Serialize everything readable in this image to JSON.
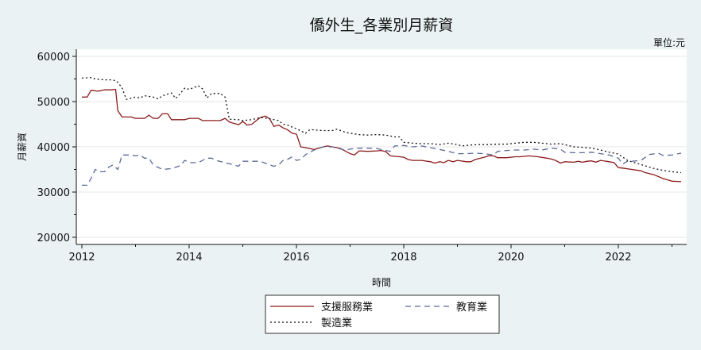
{
  "chart_data": {
    "type": "line",
    "title": "僑外生_各業別月薪資",
    "unit_note": "單位:元",
    "xlabel": "時間",
    "ylabel": "月薪資",
    "xlim": [
      2012,
      2023.25
    ],
    "ylim": [
      20000,
      61000
    ],
    "x_ticks": [
      2012,
      2014,
      2016,
      2018,
      2020,
      2022
    ],
    "y_ticks": [
      20000,
      30000,
      40000,
      50000,
      60000
    ],
    "grid": true,
    "legend_position": "bottom",
    "series": [
      {
        "name": "支援服務業",
        "color": "#8b1a1a",
        "dash": "solid",
        "points": [
          [
            2012.0,
            51000
          ],
          [
            2012.1,
            51000
          ],
          [
            2012.17,
            52500
          ],
          [
            2012.3,
            52300
          ],
          [
            2012.42,
            52600
          ],
          [
            2012.55,
            52600
          ],
          [
            2012.63,
            52700
          ],
          [
            2012.67,
            48000
          ],
          [
            2012.75,
            46600
          ],
          [
            2012.92,
            46600
          ],
          [
            2013.0,
            46300
          ],
          [
            2013.17,
            46300
          ],
          [
            2013.25,
            47000
          ],
          [
            2013.33,
            46300
          ],
          [
            2013.42,
            46300
          ],
          [
            2013.5,
            47300
          ],
          [
            2013.6,
            47300
          ],
          [
            2013.67,
            46000
          ],
          [
            2013.92,
            46000
          ],
          [
            2014.0,
            46300
          ],
          [
            2014.17,
            46300
          ],
          [
            2014.25,
            45800
          ],
          [
            2014.5,
            45800
          ],
          [
            2014.58,
            45800
          ],
          [
            2014.67,
            46300
          ],
          [
            2014.75,
            45500
          ],
          [
            2014.92,
            44900
          ],
          [
            2015.0,
            45600
          ],
          [
            2015.08,
            44800
          ],
          [
            2015.17,
            45000
          ],
          [
            2015.25,
            45800
          ],
          [
            2015.33,
            46500
          ],
          [
            2015.42,
            46800
          ],
          [
            2015.5,
            46200
          ],
          [
            2015.58,
            44500
          ],
          [
            2015.67,
            44800
          ],
          [
            2015.75,
            44200
          ],
          [
            2015.83,
            43800
          ],
          [
            2015.92,
            43000
          ],
          [
            2016.0,
            42800
          ],
          [
            2016.08,
            40000
          ],
          [
            2016.17,
            39800
          ],
          [
            2016.25,
            39600
          ],
          [
            2016.33,
            39400
          ],
          [
            2016.5,
            40000
          ],
          [
            2016.58,
            40200
          ],
          [
            2016.67,
            40000
          ],
          [
            2016.83,
            39600
          ],
          [
            2016.92,
            39000
          ],
          [
            2017.0,
            38500
          ],
          [
            2017.08,
            38200
          ],
          [
            2017.17,
            39100
          ],
          [
            2017.33,
            39000
          ],
          [
            2017.5,
            39100
          ],
          [
            2017.58,
            39200
          ],
          [
            2017.67,
            38900
          ],
          [
            2017.75,
            38000
          ],
          [
            2017.92,
            37800
          ],
          [
            2018.0,
            37700
          ],
          [
            2018.08,
            37200
          ],
          [
            2018.17,
            37000
          ],
          [
            2018.33,
            37000
          ],
          [
            2018.5,
            36700
          ],
          [
            2018.58,
            36400
          ],
          [
            2018.67,
            36700
          ],
          [
            2018.75,
            36500
          ],
          [
            2018.83,
            37000
          ],
          [
            2018.92,
            36700
          ],
          [
            2019.0,
            37000
          ],
          [
            2019.17,
            36700
          ],
          [
            2019.25,
            36700
          ],
          [
            2019.33,
            37200
          ],
          [
            2019.5,
            37700
          ],
          [
            2019.58,
            38000
          ],
          [
            2019.67,
            38000
          ],
          [
            2019.75,
            37600
          ],
          [
            2019.92,
            37600
          ],
          [
            2020.08,
            37800
          ],
          [
            2020.17,
            37800
          ],
          [
            2020.33,
            38000
          ],
          [
            2020.5,
            37800
          ],
          [
            2020.67,
            37500
          ],
          [
            2020.75,
            37300
          ],
          [
            2020.83,
            37000
          ],
          [
            2020.92,
            36400
          ],
          [
            2021.0,
            36700
          ],
          [
            2021.17,
            36600
          ],
          [
            2021.25,
            36800
          ],
          [
            2021.33,
            36600
          ],
          [
            2021.42,
            36800
          ],
          [
            2021.5,
            36900
          ],
          [
            2021.58,
            36600
          ],
          [
            2021.67,
            37000
          ],
          [
            2021.83,
            36700
          ],
          [
            2021.92,
            36500
          ],
          [
            2022.0,
            35400
          ],
          [
            2022.08,
            35300
          ],
          [
            2022.25,
            35000
          ],
          [
            2022.42,
            34700
          ],
          [
            2022.5,
            34300
          ],
          [
            2022.67,
            33800
          ],
          [
            2022.83,
            33000
          ],
          [
            2023.0,
            32400
          ],
          [
            2023.17,
            32300
          ]
        ]
      },
      {
        "name": "教育業",
        "color": "#5a6a98",
        "dash": "dashed",
        "points": [
          [
            2012.0,
            31500
          ],
          [
            2012.1,
            31500
          ],
          [
            2012.17,
            33000
          ],
          [
            2012.25,
            35000
          ],
          [
            2012.33,
            34500
          ],
          [
            2012.42,
            34500
          ],
          [
            2012.5,
            35500
          ],
          [
            2012.58,
            36000
          ],
          [
            2012.67,
            35000
          ],
          [
            2012.75,
            38200
          ],
          [
            2012.92,
            38200
          ],
          [
            2013.0,
            38000
          ],
          [
            2013.08,
            38200
          ],
          [
            2013.17,
            37500
          ],
          [
            2013.25,
            37500
          ],
          [
            2013.33,
            36000
          ],
          [
            2013.5,
            35000
          ],
          [
            2013.67,
            35200
          ],
          [
            2013.83,
            35800
          ],
          [
            2013.92,
            37000
          ],
          [
            2014.0,
            36500
          ],
          [
            2014.17,
            36500
          ],
          [
            2014.33,
            37500
          ],
          [
            2014.42,
            37500
          ],
          [
            2014.5,
            37000
          ],
          [
            2014.67,
            36500
          ],
          [
            2014.83,
            36000
          ],
          [
            2014.92,
            35700
          ],
          [
            2015.0,
            36800
          ],
          [
            2015.17,
            36800
          ],
          [
            2015.33,
            36800
          ],
          [
            2015.5,
            36000
          ],
          [
            2015.58,
            35700
          ],
          [
            2015.67,
            36000
          ],
          [
            2015.75,
            37000
          ],
          [
            2015.83,
            37200
          ],
          [
            2015.92,
            37800
          ],
          [
            2016.0,
            37000
          ],
          [
            2016.08,
            37200
          ],
          [
            2016.17,
            38300
          ],
          [
            2016.33,
            39300
          ],
          [
            2016.5,
            40000
          ],
          [
            2016.67,
            40000
          ],
          [
            2016.83,
            39500
          ],
          [
            2016.92,
            39300
          ],
          [
            2017.0,
            39500
          ],
          [
            2017.17,
            39700
          ],
          [
            2017.33,
            39700
          ],
          [
            2017.5,
            39600
          ],
          [
            2017.67,
            39200
          ],
          [
            2017.75,
            39000
          ],
          [
            2017.83,
            40200
          ],
          [
            2018.0,
            40300
          ],
          [
            2018.17,
            40000
          ],
          [
            2018.33,
            40200
          ],
          [
            2018.5,
            39800
          ],
          [
            2018.67,
            39400
          ],
          [
            2018.83,
            39000
          ],
          [
            2019.0,
            38500
          ],
          [
            2019.17,
            38500
          ],
          [
            2019.33,
            38600
          ],
          [
            2019.5,
            38500
          ],
          [
            2019.67,
            38200
          ],
          [
            2019.75,
            39000
          ],
          [
            2019.92,
            39200
          ],
          [
            2020.08,
            39300
          ],
          [
            2020.25,
            39300
          ],
          [
            2020.42,
            39500
          ],
          [
            2020.58,
            39300
          ],
          [
            2020.75,
            39700
          ],
          [
            2020.92,
            39500
          ],
          [
            2021.0,
            38800
          ],
          [
            2021.17,
            38700
          ],
          [
            2021.33,
            38700
          ],
          [
            2021.5,
            38800
          ],
          [
            2021.67,
            38500
          ],
          [
            2021.83,
            38200
          ],
          [
            2022.0,
            37500
          ],
          [
            2022.08,
            36200
          ],
          [
            2022.17,
            36800
          ],
          [
            2022.25,
            36800
          ],
          [
            2022.42,
            37000
          ],
          [
            2022.58,
            38300
          ],
          [
            2022.75,
            38600
          ],
          [
            2022.83,
            38100
          ],
          [
            2023.0,
            38200
          ],
          [
            2023.17,
            38600
          ]
        ]
      },
      {
        "name": "製造業",
        "color": "#111111",
        "dash": "dotted",
        "points": [
          [
            2012.0,
            55200
          ],
          [
            2012.17,
            55300
          ],
          [
            2012.25,
            55000
          ],
          [
            2012.42,
            54800
          ],
          [
            2012.58,
            54800
          ],
          [
            2012.67,
            54300
          ],
          [
            2012.75,
            53000
          ],
          [
            2012.83,
            50500
          ],
          [
            2013.0,
            51000
          ],
          [
            2013.08,
            50800
          ],
          [
            2013.17,
            51300
          ],
          [
            2013.33,
            51000
          ],
          [
            2013.42,
            50600
          ],
          [
            2013.5,
            51300
          ],
          [
            2013.67,
            51900
          ],
          [
            2013.75,
            50700
          ],
          [
            2013.83,
            51700
          ],
          [
            2013.92,
            53000
          ],
          [
            2014.0,
            52700
          ],
          [
            2014.17,
            53500
          ],
          [
            2014.25,
            52800
          ],
          [
            2014.33,
            50800
          ],
          [
            2014.42,
            51800
          ],
          [
            2014.58,
            51800
          ],
          [
            2014.67,
            51000
          ],
          [
            2014.75,
            46100
          ],
          [
            2014.92,
            46000
          ],
          [
            2015.0,
            45800
          ],
          [
            2015.17,
            46000
          ],
          [
            2015.33,
            46500
          ],
          [
            2015.5,
            46200
          ],
          [
            2015.67,
            45800
          ],
          [
            2015.75,
            45000
          ],
          [
            2015.83,
            44800
          ],
          [
            2016.0,
            44000
          ],
          [
            2016.17,
            43000
          ],
          [
            2016.25,
            43800
          ],
          [
            2016.5,
            43600
          ],
          [
            2016.67,
            43600
          ],
          [
            2016.75,
            43900
          ],
          [
            2016.92,
            43200
          ],
          [
            2017.0,
            43000
          ],
          [
            2017.17,
            42700
          ],
          [
            2017.33,
            42600
          ],
          [
            2017.5,
            42700
          ],
          [
            2017.67,
            42600
          ],
          [
            2017.83,
            42200
          ],
          [
            2017.92,
            42200
          ],
          [
            2018.0,
            41000
          ],
          [
            2018.17,
            40800
          ],
          [
            2018.33,
            40700
          ],
          [
            2018.5,
            40700
          ],
          [
            2018.67,
            40500
          ],
          [
            2018.83,
            40800
          ],
          [
            2019.0,
            40500
          ],
          [
            2019.08,
            40200
          ],
          [
            2019.25,
            40400
          ],
          [
            2019.42,
            40500
          ],
          [
            2019.58,
            40500
          ],
          [
            2019.75,
            40600
          ],
          [
            2019.92,
            40600
          ],
          [
            2020.08,
            40800
          ],
          [
            2020.25,
            41000
          ],
          [
            2020.42,
            41000
          ],
          [
            2020.58,
            40800
          ],
          [
            2020.75,
            40600
          ],
          [
            2020.92,
            40700
          ],
          [
            2021.0,
            40500
          ],
          [
            2021.17,
            40000
          ],
          [
            2021.33,
            39900
          ],
          [
            2021.5,
            39700
          ],
          [
            2021.67,
            39300
          ],
          [
            2021.83,
            38800
          ],
          [
            2022.0,
            38400
          ],
          [
            2022.17,
            37000
          ],
          [
            2022.33,
            36400
          ],
          [
            2022.5,
            35800
          ],
          [
            2022.67,
            35200
          ],
          [
            2022.83,
            34800
          ],
          [
            2023.0,
            34500
          ],
          [
            2023.17,
            34300
          ]
        ]
      }
    ]
  }
}
